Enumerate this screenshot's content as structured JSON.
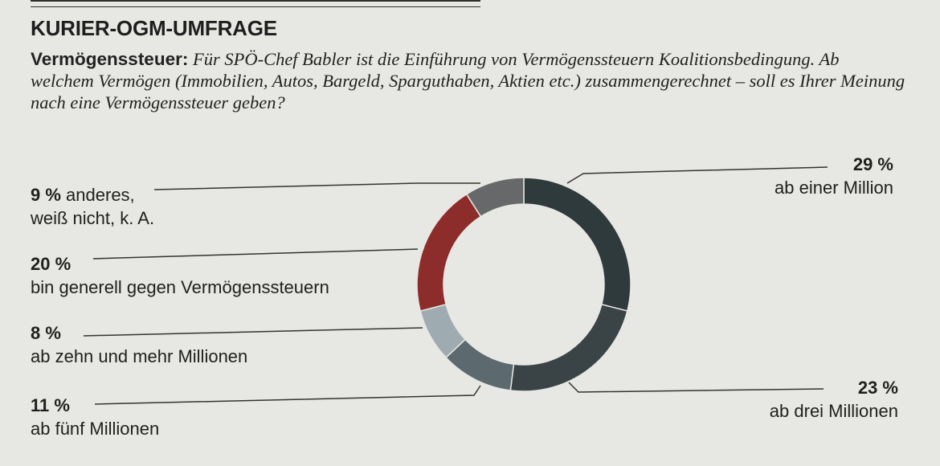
{
  "header": {
    "title": "KURIER-OGM-UMFRAGE"
  },
  "question": {
    "lead": "Vermögenssteuer:",
    "text": "Für SPÖ-Chef Babler ist die Einführung von Vermögenssteuern Koalitionsbedingung. Ab welchem Vermögen (Immobilien, Autos, Bargeld, Sparguthaben, Aktien etc.) zusammengerechnet – soll es Ihrer Meinung nach eine Vermögenssteuer geben?"
  },
  "chart_data": {
    "type": "pie",
    "variant": "donut",
    "title": "",
    "unit": "%",
    "slices": [
      {
        "label": "ab einer Million",
        "value": 29,
        "display": "29 %",
        "color": "#2f3a3c"
      },
      {
        "label": "ab drei Millionen",
        "value": 23,
        "display": "23 %",
        "color": "#3a4446"
      },
      {
        "label": "ab fünf Millionen",
        "value": 11,
        "display": "11 %",
        "color": "#5c6a6f"
      },
      {
        "label": "ab zehn und mehr Millionen",
        "value": 8,
        "display": "8 %",
        "color": "#9eabb1"
      },
      {
        "label": "bin generell gegen Vermögenssteuern",
        "value": 20,
        "display": "20 %",
        "color": "#8c2d2b"
      },
      {
        "label": "anderes, weiß nicht, k. A.",
        "value": 9,
        "display": "9 %",
        "color": "#66686a"
      }
    ]
  }
}
